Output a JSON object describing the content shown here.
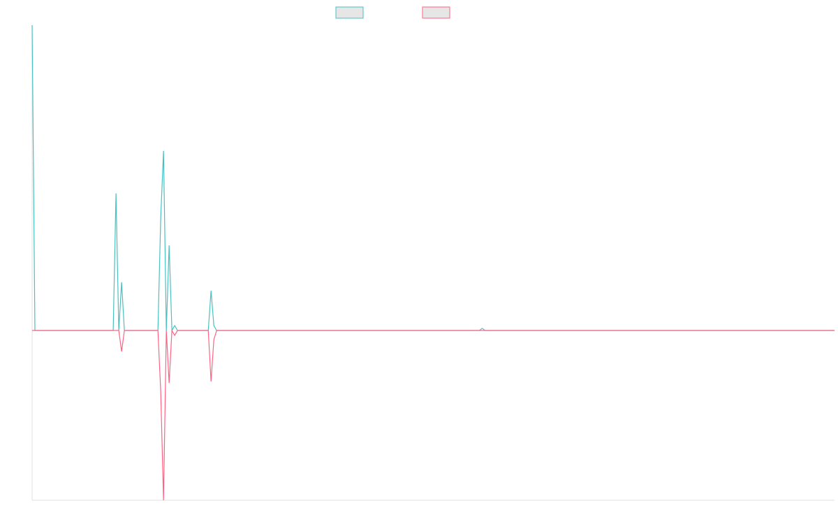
{
  "chart_data": {
    "type": "line",
    "x": [
      0,
      1,
      29,
      30,
      31,
      32,
      33,
      45,
      46,
      47,
      48,
      49,
      50,
      51,
      52,
      63,
      64,
      65,
      66,
      160,
      161,
      162,
      287
    ],
    "series": [
      {
        "color": "#4bc0c0",
        "values": [
          1,
          0,
          0,
          0.449,
          0,
          0.158,
          0,
          0,
          0.37,
          0.588,
          0,
          0.279,
          0,
          0.016,
          0,
          0,
          0.13,
          0.016,
          0,
          0,
          0.007,
          0,
          0
        ]
      },
      {
        "color": "#ff6384",
        "values": [
          0,
          0,
          0,
          0,
          0,
          -0.069,
          0,
          0,
          -0.2,
          -0.556,
          0,
          -0.172,
          0,
          -0.016,
          0,
          0,
          -0.167,
          -0.03,
          0,
          0,
          0,
          0,
          0
        ]
      }
    ],
    "xlim": [
      0,
      287
    ],
    "ylim": [
      -0.556,
      1
    ]
  }
}
